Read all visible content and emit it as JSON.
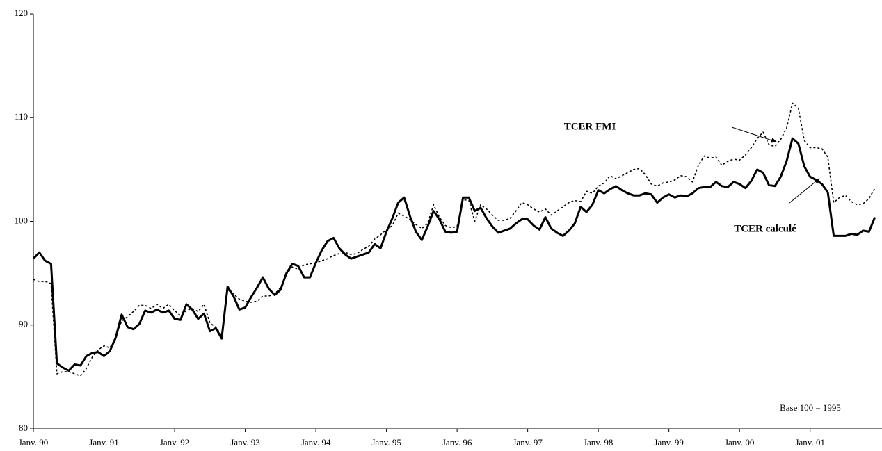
{
  "chart_data": {
    "type": "line",
    "categories": [
      "Janv. 90",
      null,
      null,
      null,
      null,
      null,
      null,
      null,
      null,
      null,
      null,
      null,
      "Janv. 91",
      null,
      null,
      null,
      null,
      null,
      null,
      null,
      null,
      null,
      null,
      null,
      "Janv. 92",
      null,
      null,
      null,
      null,
      null,
      null,
      null,
      null,
      null,
      null,
      null,
      "Janv. 93",
      null,
      null,
      null,
      null,
      null,
      null,
      null,
      null,
      null,
      null,
      null,
      "Janv. 94",
      null,
      null,
      null,
      null,
      null,
      null,
      null,
      null,
      null,
      null,
      null,
      "Janv. 95",
      null,
      null,
      null,
      null,
      null,
      null,
      null,
      null,
      null,
      null,
      null,
      "Janv. 96",
      null,
      null,
      null,
      null,
      null,
      null,
      null,
      null,
      null,
      null,
      null,
      "Janv. 97",
      null,
      null,
      null,
      null,
      null,
      null,
      null,
      null,
      null,
      null,
      null,
      "Janv. 98",
      null,
      null,
      null,
      null,
      null,
      null,
      null,
      null,
      null,
      null,
      null,
      "Janv. 99",
      null,
      null,
      null,
      null,
      null,
      null,
      null,
      null,
      null,
      null,
      null,
      "Janv. 00",
      null,
      null,
      null,
      null,
      null,
      null,
      null,
      null,
      null,
      null,
      null,
      "Janv. 01",
      null,
      null,
      null,
      null,
      null,
      null,
      null,
      null,
      null,
      null,
      null
    ],
    "series": [
      {
        "name": "TCER calculé",
        "color": "#000000",
        "style": "solid",
        "values": [
          96.4,
          97.0,
          96.2,
          95.9,
          86.3,
          85.9,
          85.6,
          86.2,
          86.1,
          87.0,
          87.3,
          87.4,
          87.0,
          87.5,
          88.8,
          91.0,
          89.8,
          89.6,
          90.1,
          91.4,
          91.2,
          91.5,
          91.2,
          91.4,
          90.6,
          90.5,
          92.0,
          91.5,
          90.6,
          91.1,
          89.4,
          89.7,
          88.7,
          93.7,
          92.8,
          91.5,
          91.7,
          92.7,
          93.6,
          94.6,
          93.5,
          92.9,
          93.4,
          95.0,
          95.9,
          95.7,
          94.6,
          94.6,
          96.0,
          97.2,
          98.1,
          98.4,
          97.4,
          96.8,
          96.4,
          96.6,
          96.8,
          97.0,
          97.8,
          97.4,
          99.0,
          100.3,
          101.8,
          102.3,
          100.5,
          99.0,
          98.2,
          99.5,
          101.0,
          100.2,
          99.0,
          98.9,
          99.0,
          102.3,
          102.3,
          101.0,
          101.3,
          100.3,
          99.5,
          98.9,
          99.1,
          99.3,
          99.8,
          100.2,
          100.2,
          99.6,
          99.2,
          100.4,
          99.3,
          98.9,
          98.6,
          99.1,
          99.8,
          101.4,
          100.9,
          101.6,
          103.0,
          102.7,
          103.1,
          103.4,
          103.0,
          102.7,
          102.5,
          102.5,
          102.7,
          102.6,
          101.8,
          102.3,
          102.6,
          102.3,
          102.5,
          102.4,
          102.7,
          103.2,
          103.3,
          103.3,
          103.8,
          103.4,
          103.3,
          103.8,
          103.6,
          103.2,
          103.9,
          105.0,
          104.7,
          103.5,
          103.4,
          104.3,
          105.8,
          108.0,
          107.5,
          105.3,
          104.3,
          104.0,
          103.6,
          102.8,
          98.6,
          98.6,
          98.6,
          98.8,
          98.7,
          99.1,
          99.0,
          100.4
        ]
      },
      {
        "name": "TCER FMI",
        "color": "#000000",
        "style": "dashed",
        "values": [
          94.4,
          94.2,
          94.2,
          94.0,
          85.3,
          85.5,
          85.5,
          85.3,
          85.1,
          85.8,
          86.9,
          87.6,
          88.0,
          87.8,
          88.8,
          90.4,
          90.8,
          91.3,
          91.9,
          91.9,
          91.6,
          92.0,
          91.6,
          92.0,
          91.4,
          90.9,
          91.4,
          91.6,
          91.3,
          92.0,
          90.2,
          89.8,
          89.0,
          93.4,
          93.0,
          92.5,
          92.3,
          92.2,
          92.3,
          92.8,
          92.8,
          93.0,
          93.6,
          94.9,
          95.6,
          95.4,
          95.8,
          95.9,
          96.0,
          96.2,
          96.4,
          96.7,
          96.9,
          97.0,
          96.8,
          96.9,
          97.3,
          97.6,
          98.3,
          98.7,
          99.2,
          99.6,
          100.8,
          100.5,
          100.2,
          99.7,
          99.3,
          99.8,
          101.6,
          100.4,
          99.6,
          99.4,
          99.5,
          102.1,
          102.0,
          100.0,
          101.6,
          101.2,
          100.6,
          100.1,
          100.1,
          100.3,
          101.0,
          101.8,
          101.6,
          101.2,
          100.9,
          101.2,
          100.6,
          101.0,
          101.4,
          101.8,
          102.0,
          101.9,
          102.9,
          102.7,
          103.4,
          103.7,
          104.4,
          104.1,
          104.4,
          104.7,
          105.0,
          105.1,
          104.5,
          103.6,
          103.4,
          103.7,
          103.8,
          104.0,
          104.4,
          104.3,
          103.8,
          105.4,
          106.3,
          106.1,
          106.2,
          105.4,
          105.8,
          106.0,
          105.9,
          106.4,
          107.1,
          108.0,
          108.6,
          107.4,
          107.2,
          107.9,
          109.0,
          111.4,
          110.9,
          107.8,
          107.1,
          107.1,
          107.0,
          106.2,
          101.8,
          102.3,
          102.5,
          101.9,
          101.6,
          101.7,
          102.2,
          103.2
        ]
      }
    ],
    "ylim": [
      80,
      120
    ],
    "yticks": [
      80,
      90,
      100,
      110,
      120
    ],
    "annotations": [
      "Base 100 = 1995"
    ]
  }
}
